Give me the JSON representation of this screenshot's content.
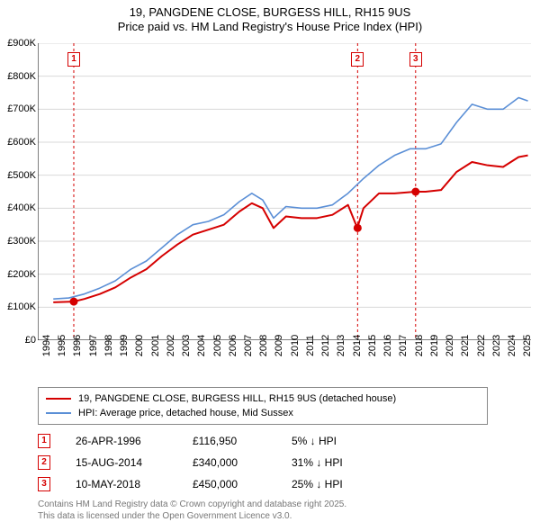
{
  "title_line1": "19, PANGDENE CLOSE, BURGESS HILL, RH15 9US",
  "title_line2": "Price paid vs. HM Land Registry's House Price Index (HPI)",
  "chart": {
    "type": "line",
    "background_color": "#ffffff",
    "grid_color": "#d9d9d9",
    "axis_color": "#000000",
    "label_fontsize": 11,
    "x": {
      "min": 1994,
      "max": 2025.8,
      "ticks": [
        1994,
        1995,
        1996,
        1997,
        1998,
        1999,
        2000,
        2001,
        2002,
        2003,
        2004,
        2005,
        2006,
        2007,
        2008,
        2009,
        2010,
        2011,
        2012,
        2013,
        2014,
        2015,
        2016,
        2017,
        2018,
        2019,
        2020,
        2021,
        2022,
        2023,
        2024,
        2025
      ]
    },
    "y": {
      "min": 0,
      "max": 900000,
      "ticks": [
        0,
        100000,
        200000,
        300000,
        400000,
        500000,
        600000,
        700000,
        800000,
        900000
      ],
      "tick_labels": [
        "£0",
        "£100K",
        "£200K",
        "£300K",
        "£400K",
        "£500K",
        "£600K",
        "£700K",
        "£800K",
        "£900K"
      ]
    },
    "series": [
      {
        "name": "property",
        "label": "19, PANGDENE CLOSE, BURGESS HILL, RH15 9US (detached house)",
        "color": "#d50000",
        "line_width": 2,
        "points": [
          [
            1995.0,
            115000
          ],
          [
            1996.3,
            116950
          ],
          [
            1997.0,
            125000
          ],
          [
            1998.0,
            140000
          ],
          [
            1999.0,
            160000
          ],
          [
            2000.0,
            190000
          ],
          [
            2001.0,
            215000
          ],
          [
            2002.0,
            255000
          ],
          [
            2003.0,
            290000
          ],
          [
            2004.0,
            320000
          ],
          [
            2005.0,
            335000
          ],
          [
            2006.0,
            350000
          ],
          [
            2007.0,
            390000
          ],
          [
            2007.8,
            415000
          ],
          [
            2008.5,
            400000
          ],
          [
            2009.2,
            340000
          ],
          [
            2010.0,
            375000
          ],
          [
            2011.0,
            370000
          ],
          [
            2012.0,
            370000
          ],
          [
            2013.0,
            380000
          ],
          [
            2014.0,
            410000
          ],
          [
            2014.6,
            340000
          ],
          [
            2015.0,
            400000
          ],
          [
            2016.0,
            445000
          ],
          [
            2017.0,
            445000
          ],
          [
            2018.35,
            450000
          ],
          [
            2019.0,
            450000
          ],
          [
            2020.0,
            455000
          ],
          [
            2021.0,
            510000
          ],
          [
            2022.0,
            540000
          ],
          [
            2023.0,
            530000
          ],
          [
            2024.0,
            525000
          ],
          [
            2025.0,
            555000
          ],
          [
            2025.6,
            560000
          ]
        ]
      },
      {
        "name": "hpi",
        "label": "HPI: Average price, detached house, Mid Sussex",
        "color": "#5b8fd6",
        "line_width": 1.6,
        "points": [
          [
            1995.0,
            125000
          ],
          [
            1996.0,
            128000
          ],
          [
            1997.0,
            140000
          ],
          [
            1998.0,
            158000
          ],
          [
            1999.0,
            180000
          ],
          [
            2000.0,
            215000
          ],
          [
            2001.0,
            240000
          ],
          [
            2002.0,
            280000
          ],
          [
            2003.0,
            320000
          ],
          [
            2004.0,
            350000
          ],
          [
            2005.0,
            360000
          ],
          [
            2006.0,
            380000
          ],
          [
            2007.0,
            420000
          ],
          [
            2007.8,
            445000
          ],
          [
            2008.5,
            425000
          ],
          [
            2009.2,
            370000
          ],
          [
            2010.0,
            405000
          ],
          [
            2011.0,
            400000
          ],
          [
            2012.0,
            400000
          ],
          [
            2013.0,
            410000
          ],
          [
            2014.0,
            445000
          ],
          [
            2015.0,
            490000
          ],
          [
            2016.0,
            530000
          ],
          [
            2017.0,
            560000
          ],
          [
            2018.0,
            580000
          ],
          [
            2019.0,
            580000
          ],
          [
            2020.0,
            595000
          ],
          [
            2021.0,
            660000
          ],
          [
            2022.0,
            715000
          ],
          [
            2023.0,
            700000
          ],
          [
            2024.0,
            700000
          ],
          [
            2025.0,
            735000
          ],
          [
            2025.6,
            725000
          ]
        ]
      }
    ],
    "sale_markers": [
      {
        "n": "1",
        "x": 1996.32,
        "y": 116950,
        "color": "#d50000"
      },
      {
        "n": "2",
        "x": 2014.62,
        "y": 340000,
        "color": "#d50000"
      },
      {
        "n": "3",
        "x": 2018.36,
        "y": 450000,
        "color": "#d50000"
      }
    ],
    "legend": {
      "border_color": "#888888",
      "fontsize": 11
    }
  },
  "legend_items": [
    {
      "color": "#d50000",
      "label": "19, PANGDENE CLOSE, BURGESS HILL, RH15 9US (detached house)"
    },
    {
      "color": "#5b8fd6",
      "label": "HPI: Average price, detached house, Mid Sussex"
    }
  ],
  "transactions": [
    {
      "n": "1",
      "color": "#d50000",
      "date": "26-APR-1996",
      "price": "£116,950",
      "delta": "5% ↓ HPI"
    },
    {
      "n": "2",
      "color": "#d50000",
      "date": "15-AUG-2014",
      "price": "£340,000",
      "delta": "31% ↓ HPI"
    },
    {
      "n": "3",
      "color": "#d50000",
      "date": "10-MAY-2018",
      "price": "£450,000",
      "delta": "25% ↓ HPI"
    }
  ],
  "attribution_line1": "Contains HM Land Registry data © Crown copyright and database right 2025.",
  "attribution_line2": "This data is licensed under the Open Government Licence v3.0."
}
